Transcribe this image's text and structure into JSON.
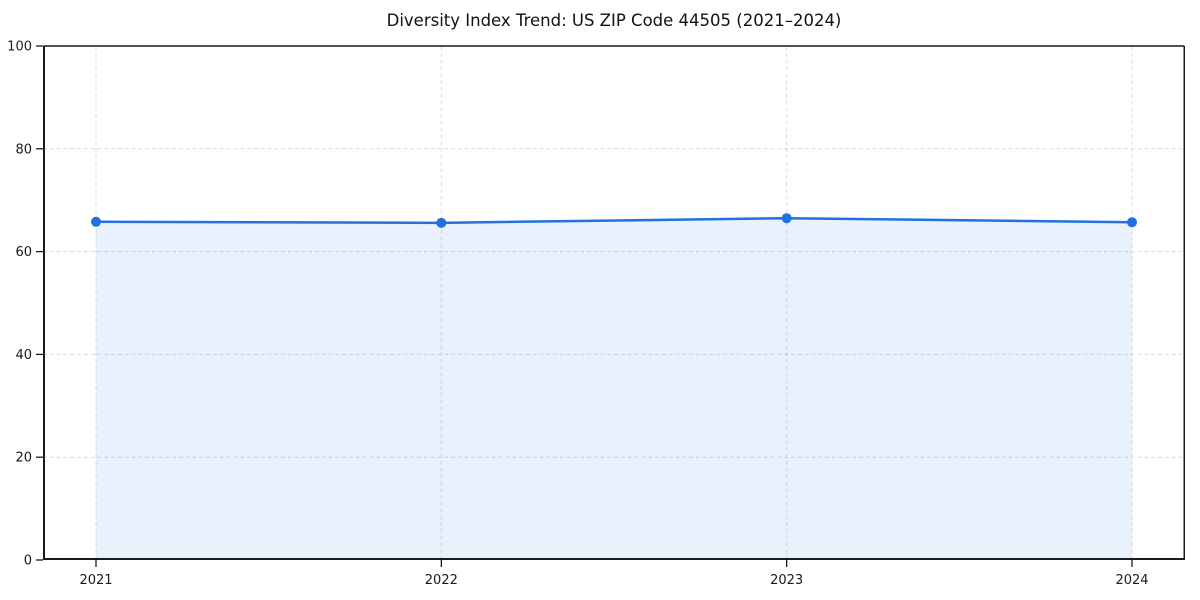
{
  "chart_data": {
    "type": "area",
    "categories": [
      "2021",
      "2022",
      "2023",
      "2024"
    ],
    "values": [
      65.8,
      65.6,
      66.5,
      65.7
    ],
    "title": "Diversity Index Trend: US ZIP Code 44505 (2021–2024)",
    "xlabel": "",
    "ylabel": "",
    "ylim": [
      0,
      100
    ],
    "yticks": [
      0,
      20,
      40,
      60,
      80,
      100
    ],
    "grid": true,
    "legend": false,
    "style": {
      "line_color": "#2271de",
      "marker_color": "#2271de",
      "fill_color": "#2271de",
      "fill_opacity": 0.1,
      "grid_color": "#dcdcdc",
      "spine_color": "#1a1a1a",
      "tick_color": "#1a1a1a",
      "tick_label_color": "#1a1a1a",
      "background": "#ffffff",
      "line_width": 2.5,
      "marker_radius": 5
    }
  }
}
